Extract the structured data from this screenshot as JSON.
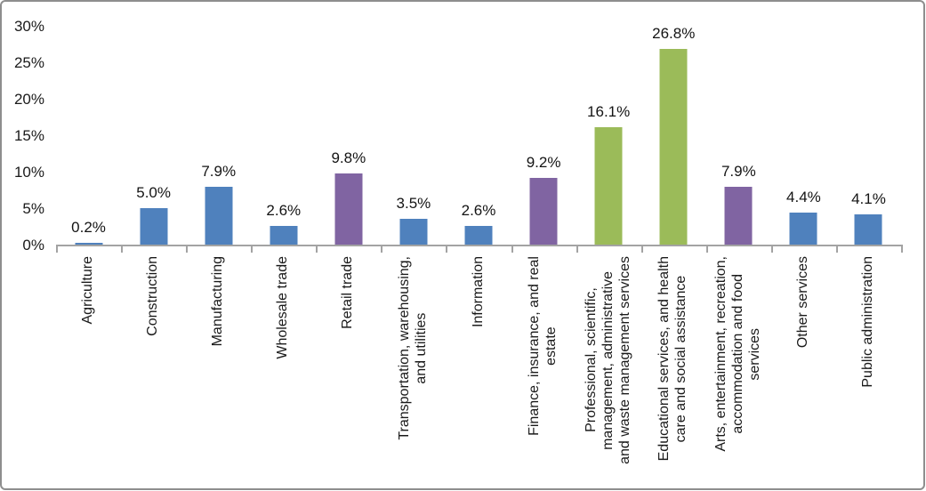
{
  "chart_data": {
    "type": "bar",
    "title": "",
    "xlabel": "",
    "ylabel": "",
    "legend": "none",
    "grid": false,
    "ylim": [
      0,
      30
    ],
    "ytick_step": 5,
    "yticks": [
      "0%",
      "5%",
      "10%",
      "15%",
      "20%",
      "25%",
      "30%"
    ],
    "categories": [
      "Agriculture",
      "Construction",
      "Manufacturing",
      "Wholesale trade",
      "Retail trade",
      "Transportation, warehousing,\nand utilities",
      "Information",
      "Finance, insurance, and real\nestate",
      "Professional, scientific,\nmanagement, administrative\nand waste management services",
      "Educational services, and health\ncare and social assistance",
      "Arts, entertainment, recreation,\naccommodation and food\nservices",
      "Other services",
      "Public administration"
    ],
    "values": [
      0.2,
      5.0,
      7.9,
      2.6,
      9.8,
      3.5,
      2.6,
      9.2,
      16.1,
      26.8,
      7.9,
      4.4,
      4.1
    ],
    "value_labels": [
      "0.2%",
      "5.0%",
      "7.9%",
      "2.6%",
      "9.8%",
      "3.5%",
      "2.6%",
      "9.2%",
      "16.1%",
      "26.8%",
      "7.9%",
      "4.4%",
      "4.1%"
    ],
    "bar_colors": [
      "#4F81BD",
      "#4F81BD",
      "#4F81BD",
      "#4F81BD",
      "#8064A2",
      "#4F81BD",
      "#4F81BD",
      "#8064A2",
      "#9BBB59",
      "#9BBB59",
      "#8064A2",
      "#4F81BD",
      "#4F81BD"
    ],
    "palette": [
      "#4F81BD",
      "#8064A2",
      "#9BBB59"
    ]
  },
  "colors": {
    "axis": "#A3A3A3",
    "text": "#1A1A1A",
    "frame_border": "#8E8E8E",
    "background": "#FFFFFF"
  }
}
